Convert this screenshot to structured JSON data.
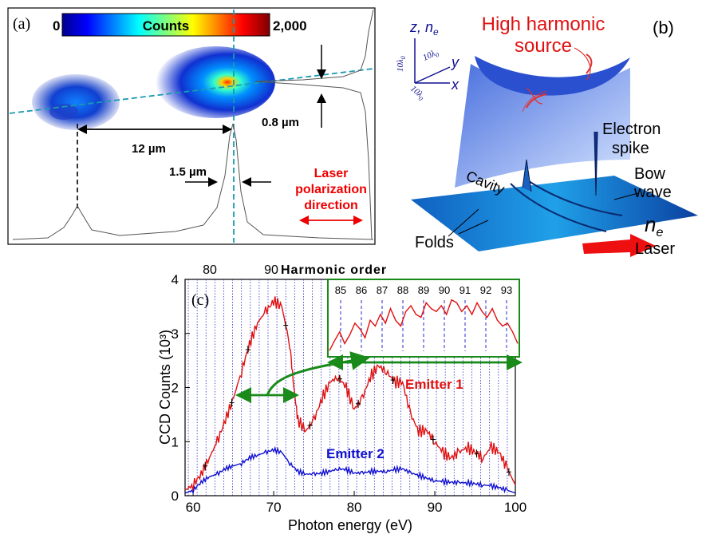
{
  "panel_a": {
    "label": "(a)",
    "colorbar": {
      "min": "0",
      "title": "Counts",
      "max": "2,000"
    },
    "offset_label": "0.8 µm",
    "separation_label": "12 µm",
    "width_label": "1.5 µm",
    "laser_text": [
      "Laser",
      "polarization",
      "direction"
    ]
  },
  "panel_b": {
    "label": "(b)",
    "axes": {
      "z": "z, n",
      "z_sub": "e",
      "y": "y",
      "x": "x",
      "scale_z": "10λ",
      "scale_y": "10λ",
      "scale_x": "10λ",
      "scale_sub": "0"
    },
    "title": [
      "High harmonic",
      "source"
    ],
    "electron_spike": [
      "Electron",
      "spike"
    ],
    "bow_wave": [
      "Bow",
      "wave"
    ],
    "cavity": "Cavity",
    "folds": "Folds",
    "ne": "n",
    "ne_sub": "e",
    "laser": "Laser"
  },
  "chart_data": {
    "type": "line",
    "label": "(c)",
    "xlabel": "Photon energy (eV)",
    "ylabel": "CCD Counts (10³)",
    "top_axis_label": "Harmonic order",
    "top_ticks": [
      "80",
      "90"
    ],
    "xlim": [
      59,
      100
    ],
    "ylim": [
      0,
      4
    ],
    "xticks": [
      "60",
      "70",
      "80",
      "90",
      "100"
    ],
    "yticks": [
      "0",
      "1",
      "2",
      "3",
      "4"
    ],
    "harmonic_line_spacing_eV": 1.1,
    "series": [
      {
        "name": "Emitter 1",
        "color": "#e01010",
        "x": [
          59,
          60,
          61,
          62,
          63,
          64,
          65,
          66,
          67,
          68,
          69,
          70,
          71,
          72,
          72.5,
          73,
          74,
          75,
          76,
          77,
          78,
          79,
          80,
          81,
          82,
          83,
          84,
          85,
          86,
          87,
          88,
          89,
          90,
          91,
          92,
          93,
          94,
          95,
          96,
          97,
          98,
          99,
          100
        ],
        "y": [
          0.1,
          0.2,
          0.4,
          0.7,
          1.0,
          1.4,
          1.8,
          2.3,
          2.8,
          3.2,
          3.4,
          3.6,
          3.5,
          2.8,
          2.0,
          1.4,
          1.2,
          1.4,
          1.8,
          2.1,
          2.2,
          2.0,
          1.6,
          1.8,
          2.2,
          2.4,
          2.3,
          2.1,
          2.1,
          1.5,
          1.2,
          1.2,
          1.0,
          0.8,
          0.7,
          0.8,
          0.9,
          0.8,
          0.7,
          0.9,
          0.8,
          0.5,
          0.2
        ]
      },
      {
        "name": "Emitter 2",
        "color": "#1010d0",
        "x": [
          59,
          60,
          61,
          62,
          63,
          64,
          65,
          66,
          67,
          68,
          69,
          70,
          71,
          72,
          73,
          74,
          75,
          76,
          77,
          78,
          79,
          80,
          81,
          82,
          83,
          84,
          85,
          86,
          87,
          88,
          89,
          90,
          91,
          92,
          93,
          94,
          95,
          96,
          97,
          98,
          99,
          100
        ],
        "y": [
          0.05,
          0.1,
          0.25,
          0.35,
          0.4,
          0.5,
          0.55,
          0.6,
          0.7,
          0.75,
          0.8,
          0.85,
          0.8,
          0.6,
          0.45,
          0.4,
          0.4,
          0.42,
          0.45,
          0.5,
          0.48,
          0.42,
          0.42,
          0.45,
          0.45,
          0.45,
          0.48,
          0.5,
          0.42,
          0.38,
          0.32,
          0.28,
          0.26,
          0.25,
          0.24,
          0.24,
          0.22,
          0.2,
          0.18,
          0.15,
          0.1,
          0.05
        ]
      }
    ],
    "inset": {
      "harmonic_labels": [
        "85",
        "86",
        "87",
        "88",
        "89",
        "90",
        "91",
        "92",
        "93"
      ],
      "trace": [
        0.08,
        0.25,
        0.4,
        0.2,
        0.35,
        0.55,
        0.45,
        0.3,
        0.6,
        0.5,
        0.7,
        0.55,
        0.8,
        0.6,
        0.5,
        0.75,
        0.85,
        0.7,
        0.65,
        0.9,
        0.8,
        0.75,
        0.85,
        0.7,
        0.95,
        0.9,
        0.75,
        0.85,
        0.7,
        0.9,
        0.75,
        0.65,
        0.8,
        0.6,
        0.5,
        0.55,
        0.4,
        0.2
      ]
    },
    "error_bars_x": [
      61.5,
      64.8,
      66.8,
      71.5,
      74.5,
      78.2,
      80.5,
      84.8,
      89.8,
      95.2,
      99.2
    ]
  }
}
